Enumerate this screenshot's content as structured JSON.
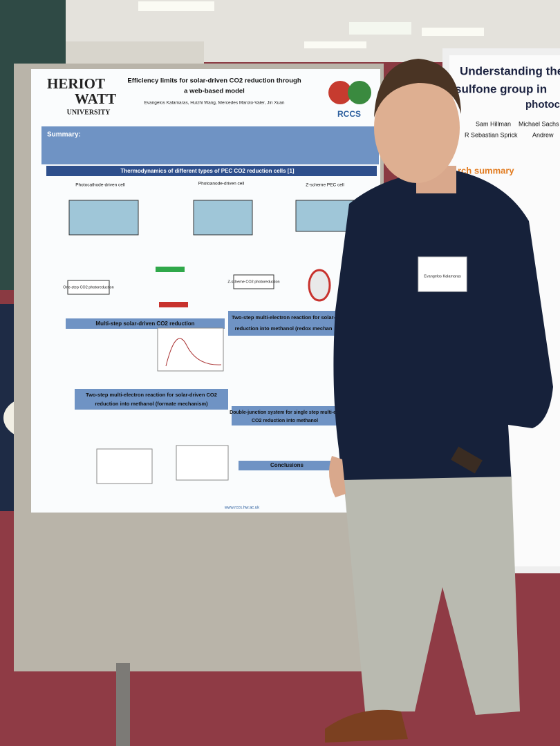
{
  "poster_left": {
    "logo": [
      "HERIOT",
      "WATT",
      "UNIVERSITY"
    ],
    "title": [
      "Efficiency limits for solar-driven CO2 reduction through",
      "a web-based model"
    ],
    "authors": "Evangelos Kalamaras, Huizhi Wang, Mercedes Maroto-Valer, Jin Xuan",
    "centre_logo": "RCCS",
    "summary_label": "Summary:",
    "section_main": "Thermodynamics of different types of PEC CO2 reduction cells [1]",
    "cells": [
      "Photocathode-driven cell",
      "Photoanode-driven cell",
      "Z-scheme PEC cell"
    ],
    "boxes": [
      "One-step CO2 photoreduction",
      "Z-scheme CO2 photoreduction"
    ],
    "sections": [
      [
        "Multi-step solar-driven CO2 reduction"
      ],
      [
        "Two-step multi-electron reaction for solar-",
        "reduction into methanol (redox mechan"
      ],
      [
        "Two-step multi-electron reaction for solar-driven CO2",
        "reduction into methanol (formate mechanism)"
      ],
      [
        "Double-junction system for single step multi-ele",
        "CO2 reduction into methanol"
      ],
      [
        "Conclusions"
      ]
    ],
    "url": "www.rccs.hw.ac.uk"
  },
  "poster_right": {
    "title": [
      "Understanding the",
      "sulfone group in",
      "photocat"
    ],
    "authors": [
      "Sam Hillman",
      "Michael Sachs",
      "R Sebastian Sprick",
      "Andrew"
    ],
    "heading": "rch summary"
  },
  "badge": "Evangelos Kalamaras"
}
